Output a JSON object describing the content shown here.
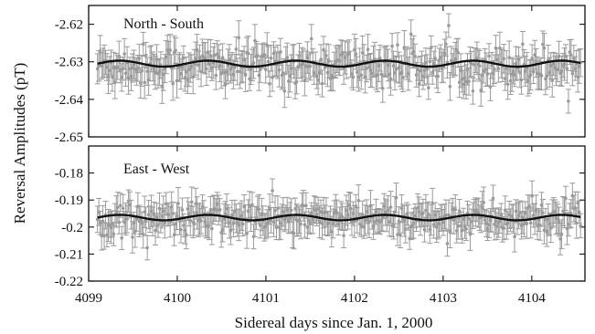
{
  "chart_data": {
    "type": "scatter",
    "xlabel": "Sidereal days since Jan. 1, 2000",
    "ylabel": "Reversal Amplitudes (pT)",
    "xlim": [
      4099,
      4104.6
    ],
    "xticks": [
      "4099",
      "4100",
      "4101",
      "4102",
      "4103",
      "4104"
    ],
    "grid": false,
    "error_bars": true,
    "colors": {
      "data": "#9a9a9a",
      "fit": "#111111"
    },
    "panels": [
      {
        "title": "North - South",
        "ylim": [
          -2.65,
          -2.615
        ],
        "yticks": [
          "-2.62",
          "-2.63",
          "-2.64",
          "-2.65"
        ],
        "ytick_values": [
          -2.62,
          -2.63,
          -2.64,
          -2.65
        ],
        "mean": -2.631,
        "scatter_sd": 0.0028,
        "error_bar": 0.0038,
        "fit": {
          "type": "sinusoid",
          "offset": -2.6305,
          "amplitude": 0.0008,
          "period_days": 0.9973
        }
      },
      {
        "title": "East - West",
        "ylim": [
          -0.22,
          -0.17
        ],
        "yticks": [
          "-0.18",
          "-0.19",
          "-0.2",
          "-0.21",
          "-0.22"
        ],
        "ytick_values": [
          -0.18,
          -0.19,
          -0.2,
          -0.21,
          -0.22
        ],
        "mean": -0.197,
        "scatter_sd": 0.0032,
        "error_bar": 0.005,
        "fit": {
          "type": "sinusoid",
          "offset": -0.1965,
          "amplitude": 0.001,
          "period_days": 0.9973
        }
      }
    ]
  }
}
